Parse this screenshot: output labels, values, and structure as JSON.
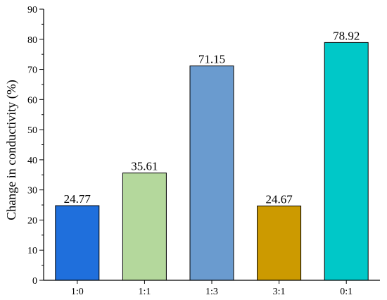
{
  "chart_data": {
    "type": "bar",
    "categories": [
      "1:0",
      "1:1",
      "1:3",
      "3:1",
      "0:1"
    ],
    "values": [
      24.77,
      35.61,
      71.15,
      24.67,
      78.92
    ],
    "value_labels": [
      "24.77",
      "35.61",
      "71.15",
      "24.67",
      "78.92"
    ],
    "colors": [
      "#1f6fdc",
      "#b4d89c",
      "#6a9bcf",
      "#cc9a00",
      "#00c8c8"
    ],
    "title": "",
    "xlabel": "",
    "ylabel": "Change in conductivity (%)",
    "ylim": [
      0,
      90
    ],
    "yticks": [
      0,
      10,
      20,
      30,
      40,
      50,
      60,
      70,
      80,
      90
    ],
    "ytick_labels": [
      "0",
      "10",
      "20",
      "30",
      "40",
      "50",
      "60",
      "70",
      "80",
      "90"
    ],
    "grid": false,
    "legend": "none"
  }
}
